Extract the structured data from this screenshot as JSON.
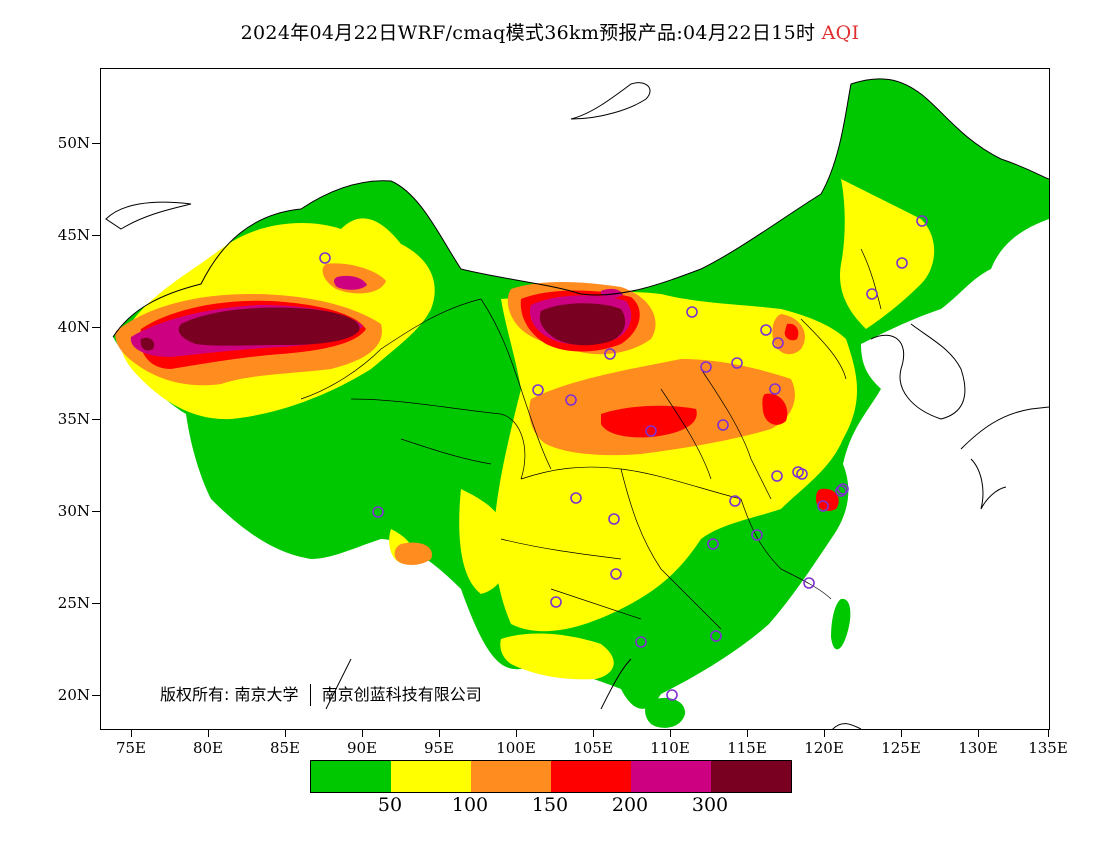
{
  "title": {
    "main": "2024年04月22日WRF/cmaq模式36km预报产品:04月22日15时",
    "variable": "AQI"
  },
  "axes": {
    "lat_labels": [
      "50N",
      "45N",
      "40N",
      "35N",
      "30N",
      "25N",
      "20N"
    ],
    "lon_labels": [
      "75E",
      "80E",
      "85E",
      "90E",
      "95E",
      "100E",
      "105E",
      "110E",
      "115E",
      "120E",
      "125E",
      "130E",
      "135E"
    ]
  },
  "copyright": {
    "prefix": "版权所有:",
    "org1": "南京大学",
    "org2": "南京创蓝科技有限公司"
  },
  "legend": {
    "colors": [
      "#00c800",
      "#ffff00",
      "#ff8c1e",
      "#ff0000",
      "#cc0080",
      "#7a0022"
    ],
    "labels": [
      "50",
      "100",
      "150",
      "200",
      "300"
    ]
  },
  "colors": {
    "good": "#00c800",
    "moderate": "#ffff00",
    "sensitive": "#ff8c1e",
    "unhealthy": "#ff0000",
    "very_unhealthy": "#cc0080",
    "hazardous": "#7a0022",
    "station_marker": "#7f30d0"
  }
}
